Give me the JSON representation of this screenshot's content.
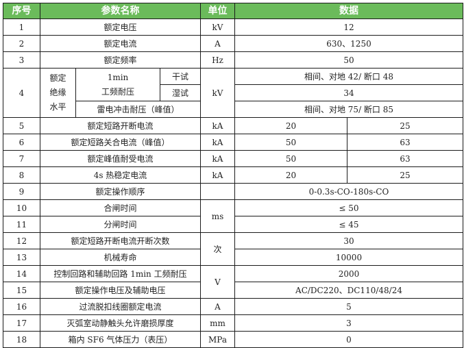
{
  "header": {
    "no": "序号",
    "name": "参数名称",
    "unit": "单位",
    "data": "数据"
  },
  "colors": {
    "header_bg": "#6bbb5b",
    "header_text": "#ffffff",
    "border": "#1a1a1a"
  },
  "rows": {
    "r1": {
      "no": "1",
      "name": "额定电压",
      "unit": "kV",
      "value": "12"
    },
    "r2": {
      "no": "2",
      "name": "额定电流",
      "unit": "A",
      "value": "630、1250"
    },
    "r3": {
      "no": "3",
      "name": "额定频率",
      "unit": "Hz",
      "value": "50"
    },
    "r4": {
      "no": "4",
      "group": "额定绝缘水平",
      "group_lines": [
        "额定",
        "绝缘",
        "水平"
      ],
      "pf_line1": "1min",
      "pf_line2": "工频耐压",
      "dry": "干试",
      "wet": "湿试",
      "impulse": "雷电冲击耐压（峰值）",
      "unit": "kV",
      "dry_value": "相间、对地 42/ 断口 48",
      "wet_value": "34",
      "impulse_value": "相间、对地 75/ 断口 85"
    },
    "r5": {
      "no": "5",
      "name": "额定短路开断电流",
      "unit": "kA",
      "v1": "20",
      "v2": "25"
    },
    "r6": {
      "no": "6",
      "name": "额定短路关合电流（峰值）",
      "unit": "kA",
      "v1": "50",
      "v2": "63"
    },
    "r7": {
      "no": "7",
      "name": "额定峰值耐受电流",
      "unit": "kA",
      "v1": "50",
      "v2": "63"
    },
    "r8": {
      "no": "8",
      "name": "4s 热稳定电流",
      "unit": "kA",
      "v1": "20",
      "v2": "25"
    },
    "r9": {
      "no": "9",
      "name": "额定操作顺序",
      "unit": "",
      "value": "0-0.3s-CO-180s-CO"
    },
    "r10": {
      "no": "10",
      "name": "合闸时间",
      "unit": "ms",
      "value": "≤ 50"
    },
    "r11": {
      "no": "11",
      "name": "分闸时间",
      "value": "≤ 45"
    },
    "r12": {
      "no": "12",
      "name": "额定短路开断电流开断次数",
      "unit": "次",
      "value": "30"
    },
    "r13": {
      "no": "13",
      "name": "机械寿命",
      "value": "10000"
    },
    "r14": {
      "no": "14",
      "name": "控制回路和辅助回路 1min 工频耐压",
      "unit": "V",
      "value": "2000"
    },
    "r15": {
      "no": "15",
      "name": "额定操作电压及辅助电压",
      "value": "AC/DC220、DC110/48/24"
    },
    "r16": {
      "no": "16",
      "name": "过流脱扣线圈额定电流",
      "unit": "A",
      "value": "5"
    },
    "r17": {
      "no": "17",
      "name": "灭弧室动静触头允许磨损厚度",
      "unit": "mm",
      "value": "3"
    },
    "r18": {
      "no": "18",
      "name": "箱内 SF6 气体压力（表压）",
      "unit": "MPa",
      "value": "0"
    }
  }
}
